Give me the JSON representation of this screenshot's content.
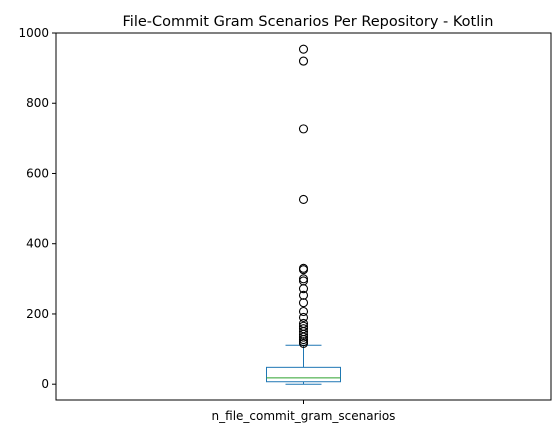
{
  "chart_data": {
    "type": "box",
    "title": "File-Commit Gram Scenarios Per Repository - Kotlin",
    "xlabel": "",
    "ylabel": "",
    "categories": [
      "n_file_commit_gram_scenarios"
    ],
    "ylim": [
      -45,
      1000
    ],
    "yticks": [
      0,
      200,
      400,
      600,
      800,
      1000
    ],
    "yticklabels": [
      "0",
      "200",
      "400",
      "600",
      "800",
      "1000"
    ],
    "grid": false,
    "box": {
      "whisker_low": 0,
      "q1": 7,
      "median": 18,
      "q3": 48,
      "whisker_high": 111
    },
    "outliers": [
      116,
      121,
      127,
      134,
      142,
      150,
      158,
      165,
      173,
      190,
      207,
      232,
      253,
      272,
      294,
      300,
      326,
      330,
      526,
      727,
      920,
      954
    ],
    "colors": {
      "box": "#1f77b4",
      "median": "#2ca02c",
      "outlier": "#000000",
      "axes": "#000000"
    }
  }
}
